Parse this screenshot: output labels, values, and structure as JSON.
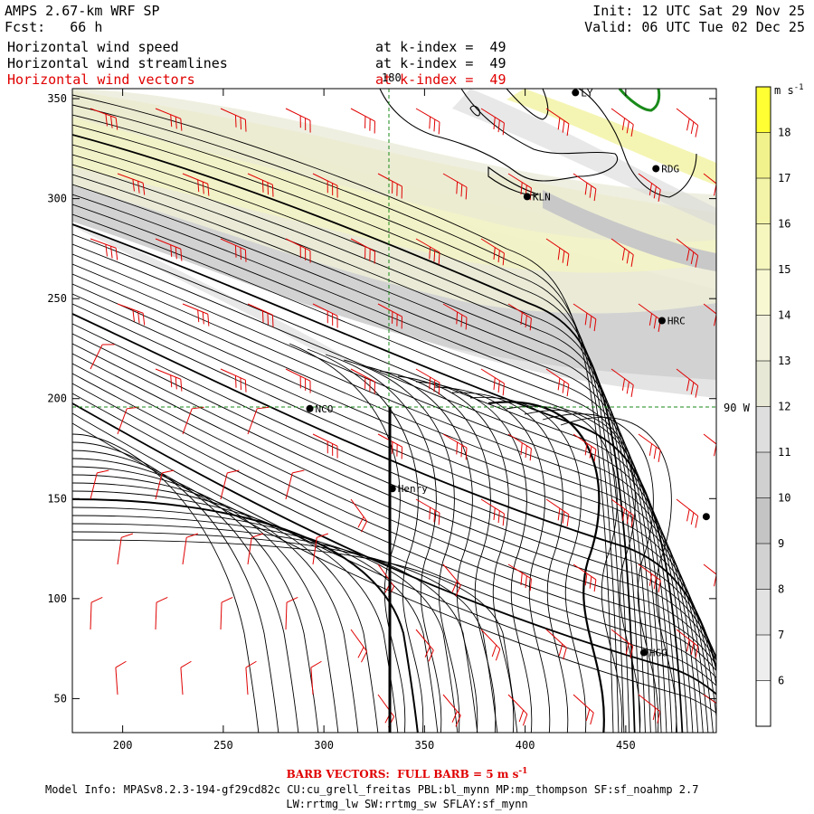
{
  "header": {
    "model": "AMPS 2.67-km WRF SP",
    "fcst_label": "Fcst:",
    "fcst_value": "66 h",
    "init": "Init: 12 UTC Sat 29 Nov 25",
    "valid": "Valid: 06 UTC Tue 02 Dec 25",
    "fields": [
      {
        "name": "Horizontal wind speed",
        "level": "at k-index =  49",
        "color": "#000000"
      },
      {
        "name": "Horizontal wind streamlines",
        "level": "at k-index =  49",
        "color": "#000000"
      },
      {
        "name": "Horizontal wind vectors",
        "level": "at k-index =  49",
        "color": "#e00000"
      }
    ]
  },
  "map": {
    "x_axis": {
      "min": 175,
      "max": 495,
      "ticks": [
        200,
        250,
        300,
        350,
        400,
        450
      ]
    },
    "y_axis": {
      "min": 33,
      "max": 355,
      "ticks": [
        50,
        100,
        150,
        200,
        250,
        300,
        350
      ]
    },
    "gridline_labels": {
      "top": "180",
      "right": "90 W"
    },
    "stations": [
      {
        "label": "LY",
        "x": 425,
        "y": 353
      },
      {
        "label": "RDG",
        "x": 465,
        "y": 315
      },
      {
        "label": "KLN",
        "x": 401,
        "y": 301
      },
      {
        "label": "HRC",
        "x": 468,
        "y": 239
      },
      {
        "label": "NCO",
        "x": 293,
        "y": 195
      },
      {
        "label": "Henry",
        "x": 334,
        "y": 155
      },
      {
        "label": "",
        "x": 490,
        "y": 141
      },
      {
        "label": "HGG",
        "x": 459,
        "y": 73
      }
    ]
  },
  "colorbar": {
    "units": "m s",
    "units_sup": "-1",
    "ticks": [
      "18",
      "17",
      "16",
      "15",
      "14",
      "13",
      "12",
      "11",
      "10",
      "9",
      "8",
      "7",
      "6"
    ],
    "colors": [
      "#ffff33",
      "#f2f28c",
      "#f4f4a8",
      "#f6f6bf",
      "#f8f8d2",
      "#f2f2dc",
      "#e8e8d6",
      "#dedede",
      "#d0d0d0",
      "#c4c4c4",
      "#d2d2d2",
      "#e2e2e2",
      "#eeeeee",
      "#ffffff"
    ]
  },
  "footer": {
    "barb_note": "BARB VECTORS:  FULL BARB = 5 m s",
    "barb_sup": "-1",
    "model_info": "Model Info: MPASv8.2.3-194-gf29cd82c CU:cu_grell_freitas PBL:bl_mynn MP:mp_thompson SF:sf_noahmp 2.7",
    "model_info2": "LW:rrtmg_lw SW:rrtmg_sw SFLAY:sf_mynn"
  }
}
